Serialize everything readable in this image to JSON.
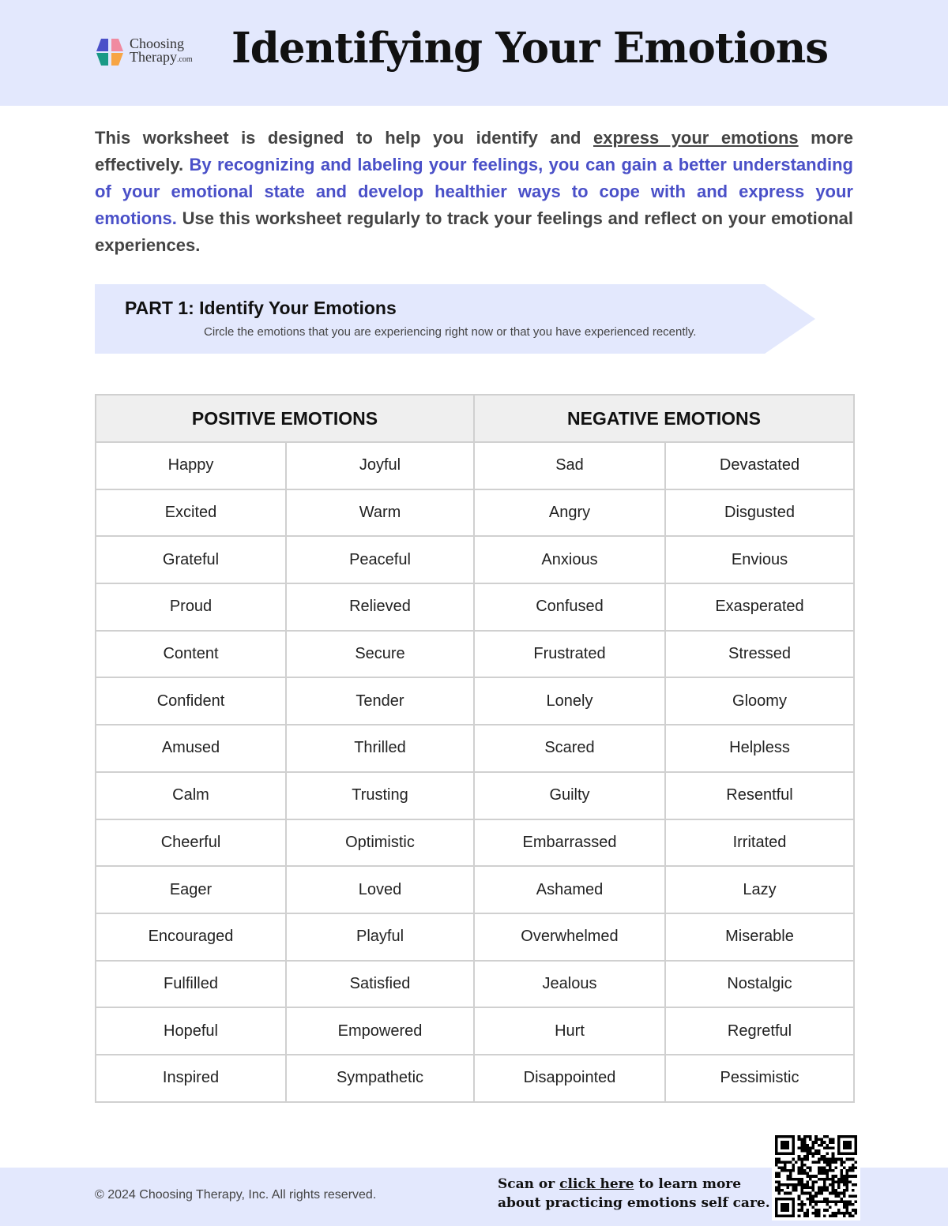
{
  "header": {
    "logo_text_1": "Choosing",
    "logo_text_2": "Therapy",
    "logo_text_3": ".com",
    "title": "Identifying Your Emotions",
    "colors": {
      "background": "#e3e8fd"
    }
  },
  "intro": {
    "part1": "This worksheet is designed to help you identify and ",
    "link": "express your emotions",
    "part2": " more effectively. ",
    "highlight": "By recognizing and labeling your feelings, you can gain a better understanding of your emotional state and develop healthier ways to cope with and express your emotions.",
    "part3": " Use this worksheet regularly to track your feelings and reflect on your emotional experiences.",
    "colors": {
      "highlight": "#4a50c8"
    }
  },
  "part1": {
    "title": "PART 1:  Identify Your Emotions",
    "subtitle": "Circle the emotions that you are experiencing right now or that you have experienced recently."
  },
  "table": {
    "headers": [
      "POSITIVE EMOTIONS",
      "NEGATIVE EMOTIONS"
    ],
    "rows": [
      [
        "Happy",
        "Joyful",
        "Sad",
        "Devastated"
      ],
      [
        "Excited",
        "Warm",
        "Angry",
        "Disgusted"
      ],
      [
        "Grateful",
        "Peaceful",
        "Anxious",
        "Envious"
      ],
      [
        "Proud",
        "Relieved",
        "Confused",
        "Exasperated"
      ],
      [
        "Content",
        "Secure",
        "Frustrated",
        "Stressed"
      ],
      [
        "Confident",
        "Tender",
        "Lonely",
        "Gloomy"
      ],
      [
        "Amused",
        "Thrilled",
        "Scared",
        "Helpless"
      ],
      [
        "Calm",
        "Trusting",
        "Guilty",
        "Resentful"
      ],
      [
        "Cheerful",
        "Optimistic",
        "Embarrassed",
        "Irritated"
      ],
      [
        "Eager",
        "Loved",
        "Ashamed",
        "Lazy"
      ],
      [
        "Encouraged",
        "Playful",
        "Overwhelmed",
        "Miserable"
      ],
      [
        "Fulfilled",
        "Satisfied",
        "Jealous",
        "Nostalgic"
      ],
      [
        "Hopeful",
        "Empowered",
        "Hurt",
        "Regretful"
      ],
      [
        "Inspired",
        "Sympathetic",
        "Disappointed",
        "Pessimistic"
      ]
    ]
  },
  "footer": {
    "copyright": "© 2024 Choosing Therapy, Inc. All rights reserved.",
    "scan_1": "Scan or ",
    "scan_link": "click here",
    "scan_2": " to learn more",
    "scan_3": "about practicing emotions self care.",
    "qr_icon": "qr-code"
  }
}
